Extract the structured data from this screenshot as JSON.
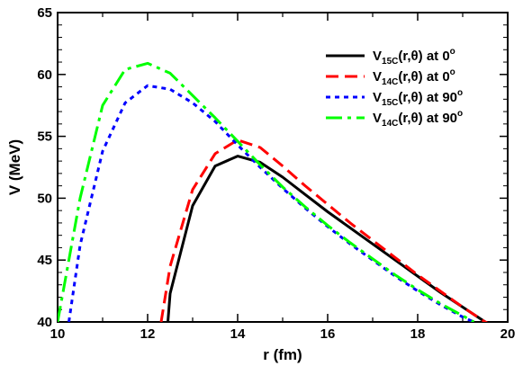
{
  "chart_data": {
    "type": "line",
    "xlabel": "r (fm)",
    "ylabel": "V (MeV)",
    "xlim": [
      10,
      20
    ],
    "ylim": [
      40,
      65
    ],
    "x_ticks": [
      "10",
      "12",
      "14",
      "16",
      "18",
      "20"
    ],
    "y_ticks": [
      "40",
      "45",
      "50",
      "55",
      "60",
      "65"
    ],
    "grid": false,
    "legend_position": "top-right",
    "series": [
      {
        "name": "V15C(r,θ) at 0o",
        "legend": {
          "base": "V",
          "sub": "15C",
          "mid": "(r,θ) at  0",
          "sup": "o"
        },
        "color": "#000000",
        "dash": "solid",
        "x": [
          12.45,
          12.5,
          13.0,
          13.5,
          14.0,
          14.5,
          15.0,
          15.5,
          16.0,
          16.5,
          17.0,
          17.5,
          18.0,
          18.5,
          19.0,
          19.5,
          19.65
        ],
        "y": [
          40.0,
          42.3,
          49.4,
          52.6,
          53.4,
          52.9,
          51.7,
          50.3,
          48.9,
          47.6,
          46.3,
          45.0,
          43.7,
          42.4,
          41.2,
          40.0,
          39.7
        ]
      },
      {
        "name": "V14C(r,θ) at 0o",
        "legend": {
          "base": "V",
          "sub": "14C",
          "mid": "(r,θ) at  0",
          "sup": "o"
        },
        "color": "#ff0000",
        "dash": "dashed",
        "x": [
          12.3,
          12.5,
          13.0,
          13.5,
          14.0,
          14.5,
          15.0,
          15.5,
          16.0,
          16.5,
          17.0,
          17.5,
          18.0,
          18.5,
          19.0,
          19.5,
          19.65
        ],
        "y": [
          40.0,
          44.5,
          50.7,
          53.6,
          54.7,
          54.1,
          52.6,
          51.0,
          49.5,
          48.0,
          46.6,
          45.2,
          43.8,
          42.5,
          41.2,
          40.0,
          39.7
        ]
      },
      {
        "name": "V15C(r,θ) at 90o",
        "legend": {
          "base": "V",
          "sub": "15C",
          "mid": "(r,θ) at 90",
          "sup": "o"
        },
        "color": "#0000ff",
        "dash": "dotted",
        "x": [
          10.25,
          10.5,
          11.0,
          11.5,
          12.0,
          12.5,
          13.0,
          13.5,
          14.0,
          14.5,
          15.0,
          15.5,
          16.0,
          16.5,
          17.0,
          17.5,
          18.0,
          18.5,
          19.0,
          19.25
        ],
        "y": [
          40.0,
          46.2,
          53.8,
          57.7,
          59.1,
          58.8,
          57.7,
          56.2,
          54.3,
          52.5,
          50.8,
          49.2,
          47.7,
          46.3,
          45.0,
          43.7,
          42.5,
          41.4,
          40.4,
          40.0
        ]
      },
      {
        "name": "V14C(r,θ) at 90o",
        "legend": {
          "base": "V",
          "sub": "14C",
          "mid": "(r,θ) at 90",
          "sup": "o"
        },
        "color": "#00ff00",
        "dash": "dashdot",
        "x": [
          10.0,
          10.5,
          11.0,
          11.5,
          12.0,
          12.5,
          13.0,
          13.5,
          14.0,
          14.5,
          15.0,
          15.5,
          16.0,
          16.5,
          17.0,
          17.5,
          18.0,
          18.5,
          19.0,
          19.25
        ],
        "y": [
          40.0,
          50.0,
          57.5,
          60.4,
          60.9,
          60.1,
          58.3,
          56.5,
          54.6,
          52.7,
          50.9,
          49.3,
          47.8,
          46.4,
          45.1,
          43.8,
          42.6,
          41.5,
          40.5,
          40.0
        ]
      }
    ]
  }
}
